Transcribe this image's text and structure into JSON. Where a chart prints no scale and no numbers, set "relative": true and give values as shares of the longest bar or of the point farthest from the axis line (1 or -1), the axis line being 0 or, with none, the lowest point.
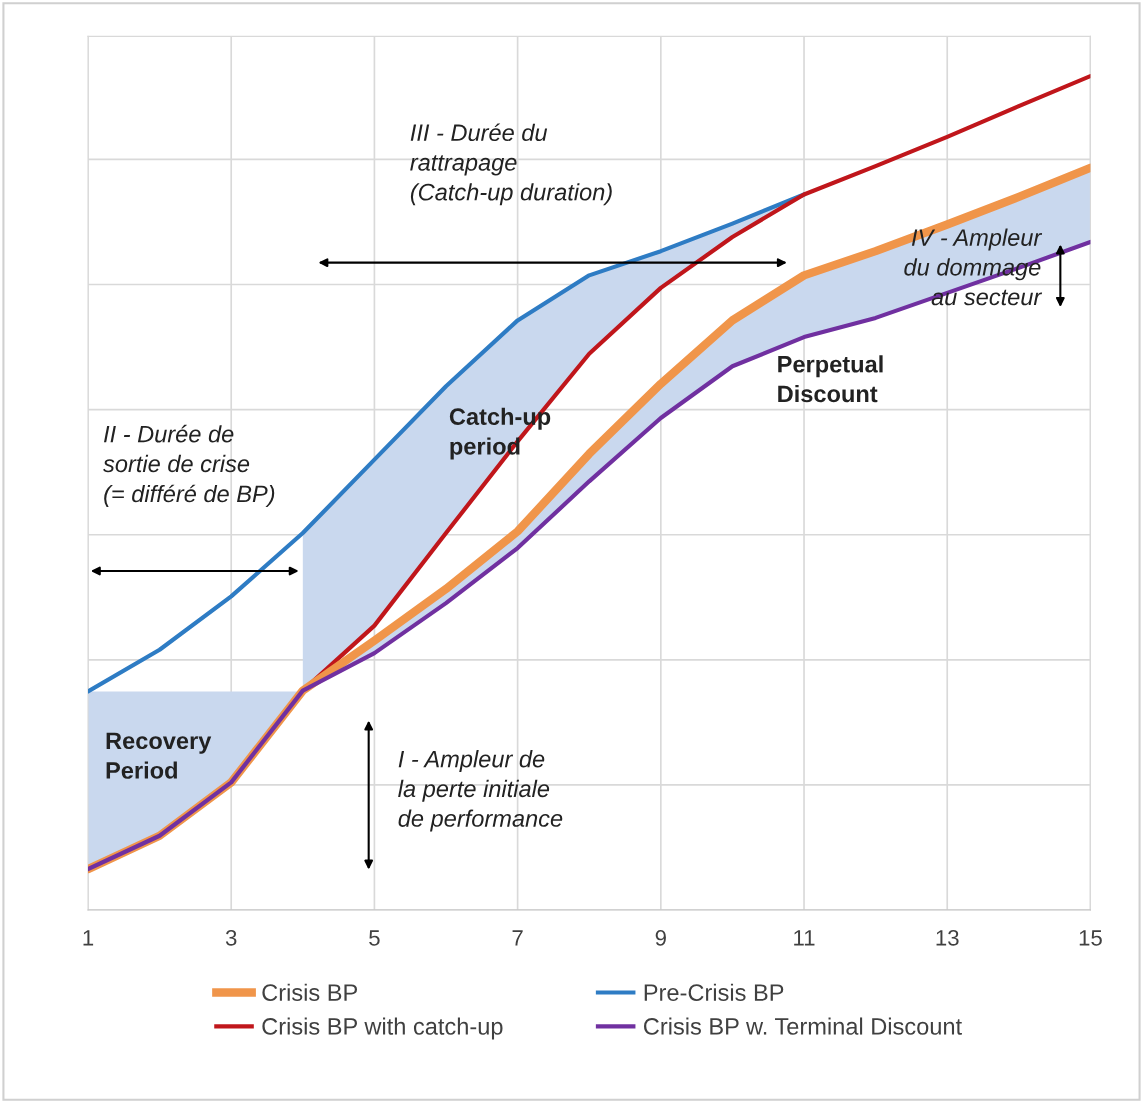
{
  "chart_data": {
    "type": "line",
    "relative": true,
    "x": [
      1,
      2,
      3,
      4,
      5,
      6,
      7,
      8,
      9,
      10,
      11,
      12,
      13,
      14,
      15
    ],
    "xlim": [
      1,
      15
    ],
    "xticks": [
      1,
      3,
      5,
      7,
      9,
      11,
      13,
      15
    ],
    "series": [
      {
        "name": "Crisis BP",
        "color": "#f0954a",
        "values": [
          0.049,
          0.089,
          0.153,
          0.263,
          0.323,
          0.385,
          0.454,
          0.547,
          0.631,
          0.707,
          0.761,
          0.79,
          0.822,
          0.855,
          0.89
        ]
      },
      {
        "name": "Pre-Crisis BP",
        "color": "#2e7cc4",
        "values": [
          0.262,
          0.312,
          0.376,
          0.452,
          0.54,
          0.628,
          0.707,
          0.761,
          0.79,
          0.823,
          0.858,
          null,
          null,
          null,
          null
        ]
      },
      {
        "name": "Crisis BP with catch-up",
        "color": "#c0161b",
        "values": [
          0.049,
          0.089,
          0.153,
          0.263,
          0.341,
          0.452,
          0.562,
          0.667,
          0.746,
          0.807,
          0.858,
          0.892,
          0.927,
          0.964,
          1
        ],
        "lower": [
          null,
          null,
          null,
          0.263,
          0.341,
          0.452,
          0.562,
          0.667,
          0.746,
          0.807,
          0.858,
          null,
          null,
          null,
          null
        ],
        "upper": [
          null,
          null,
          null,
          0.452,
          0.54,
          0.628,
          0.707,
          0.761,
          0.79,
          0.823,
          0.858,
          null,
          null,
          null,
          null
        ]
      },
      {
        "name": "Crisis BP w. Terminal Discount",
        "color": "#7030a0",
        "values": [
          0.049,
          0.089,
          0.153,
          0.263,
          0.308,
          0.368,
          0.434,
          0.514,
          0.59,
          0.652,
          0.687,
          0.71,
          0.74,
          0.77,
          0.801
        ],
        "lower": [
          0.049,
          0.089,
          0.153,
          0.263,
          0.308,
          0.368,
          0.434,
          0.514,
          0.59,
          0.652,
          0.687,
          0.71,
          0.74,
          0.77,
          0.801
        ],
        "upper": [
          0.262,
          0.262,
          0.262,
          0.262,
          0.323,
          0.385,
          0.454,
          0.547,
          0.631,
          0.707,
          0.761,
          0.79,
          0.822,
          0.855,
          0.89
        ]
      }
    ],
    "annotations": [
      "III - Durée du\nrattrapage\n(Catch-up duration)",
      "II - Durée de\nsortie de crise\n(= différé de BP)",
      "I - Ampleur de\nla perte initiale\nde performance",
      "IV - Ampleur\ndu dommage\nau secteur",
      "Recovery\nPeriod",
      "Catch-up\nperiod",
      "Perpetual\nDiscount"
    ],
    "grid": true,
    "legend": "bottom",
    "tick_labels": "x",
    "marker": "none",
    "line_style": "solid"
  }
}
